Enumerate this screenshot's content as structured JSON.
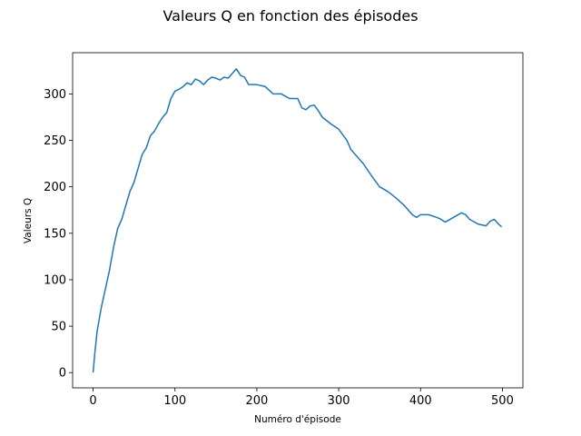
{
  "chart_data": {
    "type": "line",
    "title": "Valeurs Q en fonction des épisodes",
    "xlabel": "Numéro d'épisode",
    "ylabel": "Valeurs Q",
    "x": [
      0,
      2,
      5,
      10,
      15,
      20,
      25,
      30,
      35,
      40,
      45,
      50,
      55,
      60,
      65,
      70,
      75,
      80,
      85,
      90,
      95,
      100,
      105,
      110,
      115,
      120,
      125,
      130,
      135,
      140,
      145,
      150,
      155,
      160,
      165,
      170,
      175,
      180,
      185,
      190,
      195,
      200,
      210,
      220,
      230,
      240,
      250,
      255,
      260,
      265,
      270,
      275,
      280,
      290,
      300,
      310,
      315,
      320,
      330,
      340,
      350,
      360,
      370,
      380,
      390,
      395,
      400,
      410,
      420,
      425,
      430,
      440,
      450,
      455,
      460,
      470,
      480,
      485,
      490,
      495,
      499
    ],
    "series": [
      {
        "name": "Valeurs Q",
        "color": "#1f77b4",
        "values": [
          0,
          20,
          45,
          70,
          90,
          110,
          135,
          155,
          165,
          180,
          195,
          205,
          220,
          235,
          242,
          255,
          260,
          268,
          275,
          280,
          295,
          303,
          305,
          308,
          312,
          310,
          316,
          314,
          310,
          315,
          318,
          317,
          315,
          318,
          317,
          322,
          327,
          320,
          318,
          310,
          310,
          310,
          308,
          300,
          300,
          295,
          295,
          285,
          283,
          287,
          288,
          282,
          275,
          268,
          262,
          250,
          240,
          235,
          225,
          212,
          200,
          195,
          188,
          180,
          170,
          167,
          170,
          170,
          167,
          165,
          162,
          167,
          172,
          170,
          165,
          160,
          158,
          163,
          165,
          160,
          157
        ]
      }
    ],
    "xlim": [
      -25,
      525
    ],
    "ylim": [
      -16.4,
      344.4
    ],
    "xticks": [
      0,
      100,
      200,
      300,
      400,
      500
    ],
    "yticks": [
      0,
      50,
      100,
      150,
      200,
      250,
      300
    ],
    "grid": false
  }
}
